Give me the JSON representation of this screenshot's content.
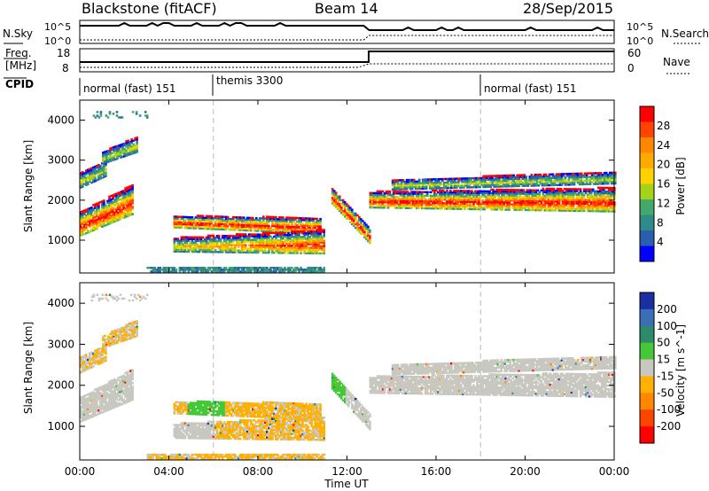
{
  "header": {
    "title": "Blackstone (fitACF)",
    "beam": "Beam 14",
    "date": "28/Sep/2015"
  },
  "top_panel": {
    "nsky_label": "N.Sky",
    "nsky_top": "10^5",
    "nsky_bottom": "10^0",
    "nsearch_label": "N.Search",
    "nsearch_top": "10^5",
    "nsearch_bottom": "10^0",
    "freq_label": "Freq.",
    "freq_unit": "[MHz]",
    "freq_top": "18",
    "freq_bottom": "8",
    "nave_label": "Nave",
    "nave_top": "60",
    "nave_bottom": "0",
    "cpid_label": "CPID",
    "cpid_segments": [
      {
        "label": "normal (fast) 151",
        "start_hour": 0
      },
      {
        "label": "themis 3300",
        "start_hour": 6
      },
      {
        "label": "normal (fast) 151",
        "start_hour": 18
      }
    ]
  },
  "chart_data": [
    {
      "type": "heatmap",
      "name": "Power",
      "ylabel": "Slant Range [km]",
      "yticks": [
        "1000",
        "2000",
        "3000",
        "4000"
      ],
      "ylim": [
        180,
        4500
      ],
      "xlim": [
        0,
        24
      ],
      "colorbar_label": "Power [dB]",
      "colorbar_ticks": [
        "28",
        "24",
        "20",
        "16",
        "12",
        "8",
        "4"
      ],
      "colorbar_colors": [
        "#ff0000",
        "#ff4400",
        "#ff8800",
        "#ffaa00",
        "#ffd200",
        "#a6d21a",
        "#44a86a",
        "#2f8a8a",
        "#2a5fb0",
        "#0000ff"
      ]
    },
    {
      "type": "heatmap",
      "name": "Velocity",
      "ylabel": "Slant Range [km]",
      "yticks": [
        "1000",
        "2000",
        "3000",
        "4000"
      ],
      "ylim": [
        180,
        4500
      ],
      "xlim": [
        0,
        24
      ],
      "colorbar_label": "Velocity [m s^-1]",
      "colorbar_ticks": [
        "200",
        "100",
        "50",
        "15",
        "-15",
        "-50",
        "-100",
        "-200"
      ],
      "colorbar_colors": [
        "#1a2fa0",
        "#3a6fb8",
        "#2d8a6a",
        "#44c83a",
        "#c8c8c0",
        "#ffb000",
        "#ff8800",
        "#ff4400",
        "#ff0000"
      ]
    }
  ],
  "xaxis": {
    "label": "Time UT",
    "ticks": [
      "00:00",
      "04:00",
      "08:00",
      "12:00",
      "16:00",
      "20:00",
      "00:00"
    ]
  }
}
